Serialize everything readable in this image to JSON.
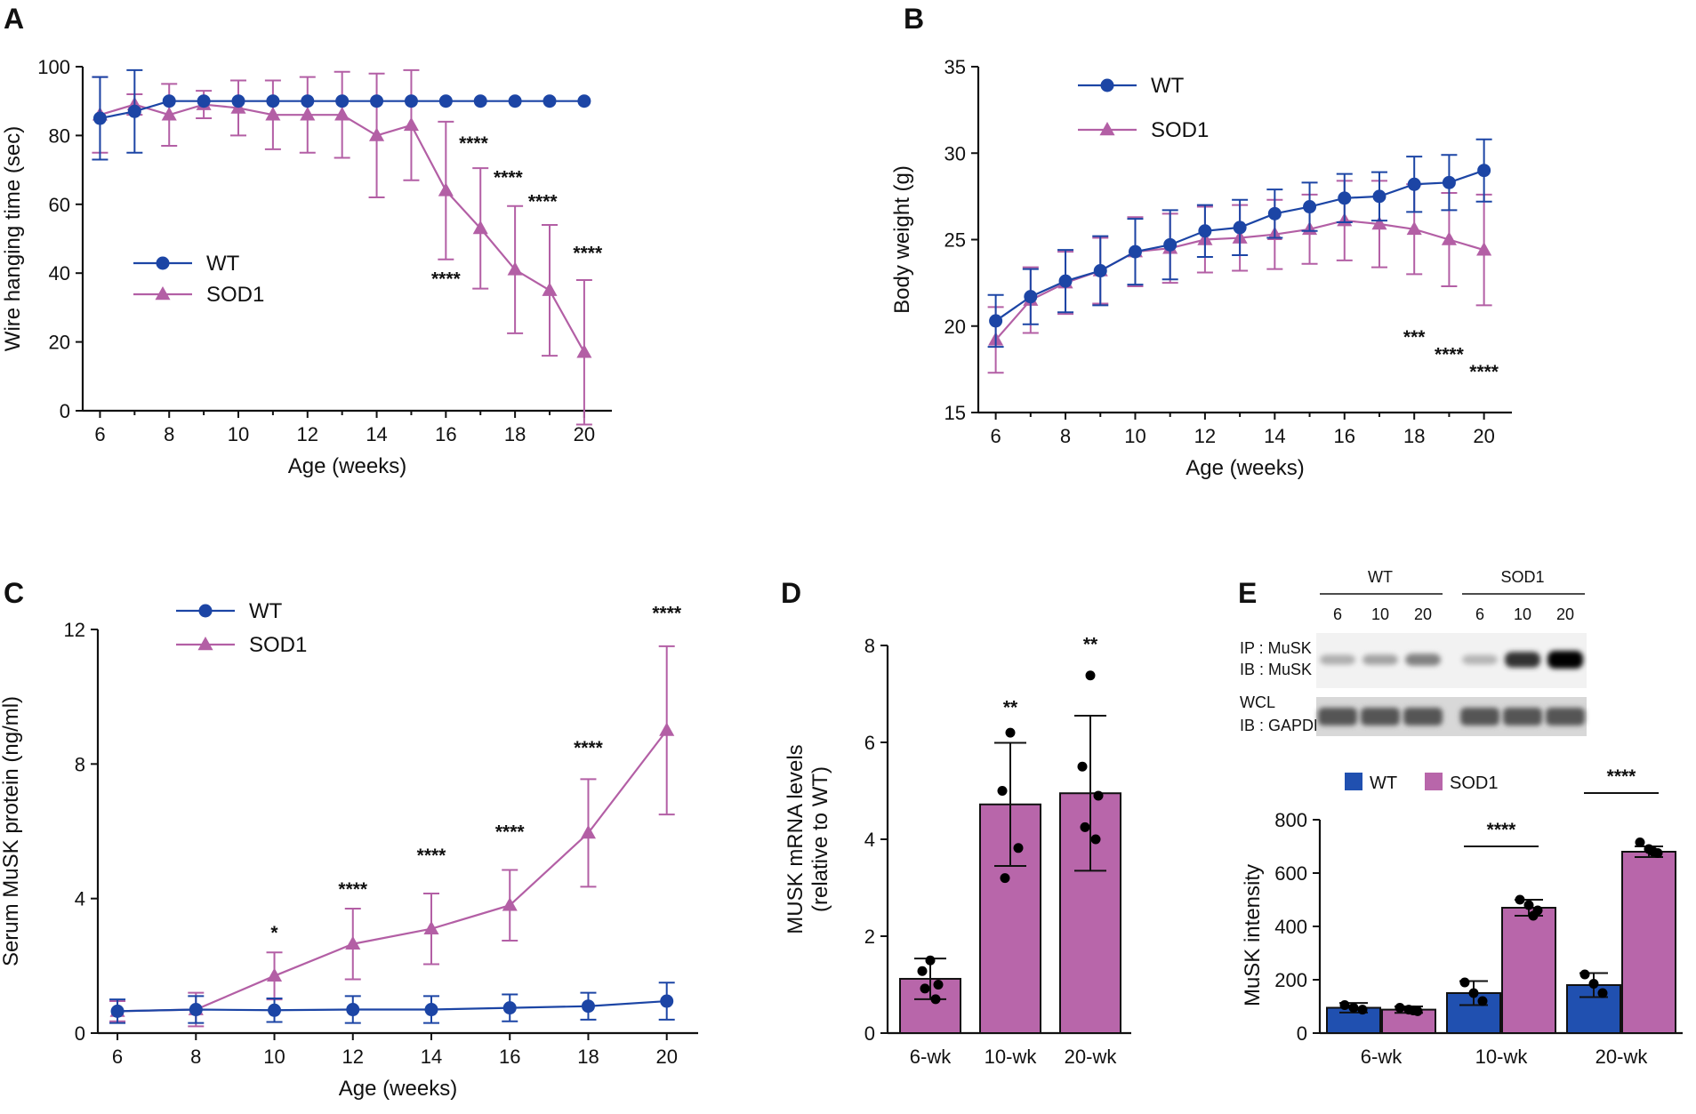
{
  "colors": {
    "wt": "#1c45a5",
    "sod1": "#b35fa5",
    "wt_fill": "#2050b0",
    "sod1_fill": "#b866aa",
    "axis": "#111111"
  },
  "chart_data": [
    {
      "panel": "A",
      "type": "line",
      "xlabel": "Age (weeks)",
      "ylabel": "Wire hanging time (sec)",
      "xlim": [
        5.5,
        20.8
      ],
      "ylim": [
        0,
        100
      ],
      "xticks": [
        6,
        8,
        10,
        12,
        14,
        16,
        18,
        20
      ],
      "yticks": [
        0,
        20,
        40,
        60,
        80,
        100
      ],
      "legend": {
        "position": "center-left",
        "labels": [
          "WT",
          "SOD1"
        ]
      },
      "x": [
        6,
        7,
        8,
        9,
        10,
        11,
        12,
        13,
        14,
        15,
        16,
        17,
        18,
        19,
        20
      ],
      "series": [
        {
          "name": "WT",
          "marker": "circle",
          "values": [
            85,
            87,
            90,
            90,
            90,
            90,
            90,
            90,
            90,
            90,
            90,
            90,
            90,
            90,
            90
          ],
          "err": [
            12,
            12,
            0,
            0,
            0,
            0,
            0,
            0,
            0,
            0,
            0,
            0,
            0,
            0,
            0
          ]
        },
        {
          "name": "SOD1",
          "marker": "triangle",
          "values": [
            86,
            89,
            86,
            89,
            88,
            86,
            86,
            86,
            80,
            83,
            64,
            53,
            41,
            35,
            17
          ],
          "err": [
            11,
            3,
            9,
            4,
            8,
            10,
            11,
            12.5,
            18,
            16,
            20,
            17.5,
            18.5,
            19,
            21
          ]
        }
      ],
      "annotations": [
        {
          "text": "****",
          "x": 16.8,
          "y": 76
        },
        {
          "text": "****",
          "x": 16.0,
          "y": 36.5
        },
        {
          "text": "****",
          "x": 17.8,
          "y": 66
        },
        {
          "text": "****",
          "x": 18.8,
          "y": 59
        },
        {
          "text": "****",
          "x": 20.1,
          "y": 44
        }
      ]
    },
    {
      "panel": "B",
      "type": "line",
      "xlabel": "Age (weeks)",
      "ylabel": "Body weight (g)",
      "xlim": [
        5.5,
        20.8
      ],
      "ylim": [
        15,
        35
      ],
      "xticks": [
        6,
        8,
        10,
        12,
        14,
        16,
        18,
        20
      ],
      "yticks": [
        15,
        20,
        25,
        30,
        35
      ],
      "legend": {
        "position": "top-left",
        "labels": [
          "WT",
          "SOD1"
        ]
      },
      "x": [
        6,
        7,
        8,
        9,
        10,
        11,
        12,
        13,
        14,
        15,
        16,
        17,
        18,
        19,
        20
      ],
      "series": [
        {
          "name": "WT",
          "marker": "circle",
          "values": [
            20.3,
            21.7,
            22.6,
            23.2,
            24.3,
            24.7,
            25.5,
            25.7,
            26.5,
            26.9,
            27.4,
            27.5,
            28.2,
            28.3,
            29.0
          ],
          "err": [
            1.5,
            1.6,
            1.8,
            2.0,
            1.9,
            2.0,
            1.5,
            1.6,
            1.4,
            1.4,
            1.4,
            1.4,
            1.6,
            1.6,
            1.8
          ]
        },
        {
          "name": "SOD1",
          "marker": "triangle",
          "values": [
            19.2,
            21.5,
            22.5,
            23.2,
            24.3,
            24.5,
            25.0,
            25.1,
            25.3,
            25.6,
            26.1,
            25.9,
            25.6,
            25.0,
            24.4
          ],
          "err": [
            1.9,
            1.9,
            1.8,
            1.9,
            2.0,
            2.0,
            1.9,
            1.9,
            2.0,
            2.0,
            2.3,
            2.5,
            2.6,
            2.7,
            3.2
          ]
        }
      ],
      "annotations": [
        {
          "text": "***",
          "x": 18.0,
          "y": 19.0
        },
        {
          "text": "****",
          "x": 19.0,
          "y": 18.0
        },
        {
          "text": "****",
          "x": 20.0,
          "y": 17.0
        }
      ]
    },
    {
      "panel": "C",
      "type": "line",
      "xlabel": "Age (weeks)",
      "ylabel": "Serum MuSK protein (ng/ml)",
      "xlim": [
        5.5,
        20.8
      ],
      "ylim": [
        0,
        12
      ],
      "xticks": [
        6,
        8,
        10,
        12,
        14,
        16,
        18,
        20
      ],
      "yticks": [
        0,
        4,
        8,
        12
      ],
      "legend": {
        "position": "top-left",
        "labels": [
          "WT",
          "SOD1"
        ]
      },
      "x": [
        6,
        8,
        10,
        12,
        14,
        16,
        18,
        20
      ],
      "series": [
        {
          "name": "WT",
          "marker": "circle",
          "values": [
            0.65,
            0.7,
            0.68,
            0.7,
            0.7,
            0.75,
            0.8,
            0.95
          ],
          "err": [
            0.35,
            0.4,
            0.35,
            0.4,
            0.4,
            0.4,
            0.4,
            0.55
          ]
        },
        {
          "name": "SOD1",
          "marker": "triangle",
          "values": [
            0.65,
            0.7,
            1.7,
            2.65,
            3.1,
            3.8,
            5.95,
            9.0
          ],
          "err": [
            0.3,
            0.5,
            0.7,
            1.05,
            1.05,
            1.05,
            1.6,
            2.5
          ]
        }
      ],
      "annotations": [
        {
          "text": "*",
          "x": 10,
          "y": 2.8
        },
        {
          "text": "****",
          "x": 12,
          "y": 4.1
        },
        {
          "text": "****",
          "x": 14,
          "y": 5.1
        },
        {
          "text": "****",
          "x": 16,
          "y": 5.8
        },
        {
          "text": "****",
          "x": 18,
          "y": 8.3
        },
        {
          "text": "****",
          "x": 20,
          "y": 12.3
        }
      ]
    },
    {
      "panel": "D",
      "type": "bar",
      "xlabel": "",
      "ylabel": "MUSK mRNA levels",
      "ylabel2": "(relative to WT)",
      "ylim": [
        0,
        8
      ],
      "yticks": [
        0,
        2,
        4,
        6,
        8
      ],
      "categories": [
        "6-wk",
        "10-wk",
        "20-wk"
      ],
      "values": [
        1.12,
        4.72,
        4.95
      ],
      "err": [
        0.42,
        1.27,
        1.6
      ],
      "points": [
        [
          1.5,
          1.28,
          1.0,
          0.92,
          0.7
        ],
        [
          6.2,
          5.0,
          3.82,
          3.2
        ],
        [
          7.38,
          5.5,
          4.9,
          4.25,
          4.0
        ]
      ],
      "annotations": [
        {
          "text": "**",
          "category": "10-wk",
          "y": 6.6
        },
        {
          "text": "**",
          "category": "20-wk",
          "y": 7.9
        }
      ]
    },
    {
      "panel": "E",
      "type": "bar",
      "xlabel": "",
      "ylabel": "MuSK intensity",
      "ylim": [
        0,
        800
      ],
      "yticks": [
        0,
        200,
        400,
        600,
        800
      ],
      "categories": [
        "6-wk",
        "10-wk",
        "20-wk"
      ],
      "legend": {
        "position": "top",
        "labels": [
          "WT",
          "SOD1"
        ]
      },
      "series": [
        {
          "name": "WT",
          "values": [
            95,
            150,
            180
          ],
          "err": [
            18,
            45,
            45
          ],
          "points": [
            [
              105,
              95,
              88
            ],
            [
              190,
              150,
              120
            ],
            [
              220,
              185,
              150
            ]
          ]
        },
        {
          "name": "SOD1",
          "values": [
            88,
            470,
            680
          ],
          "err": [
            12,
            30,
            20
          ],
          "points": [
            [
              95,
              88,
              82,
              85
            ],
            [
              500,
              480,
              460,
              440
            ],
            [
              715,
              690,
              675,
              680
            ]
          ]
        }
      ],
      "annotations": [
        {
          "text": "****",
          "category": "10-wk",
          "y": 720
        },
        {
          "text": "****",
          "category": "20-wk",
          "y": 920
        }
      ],
      "blot": {
        "group_labels": [
          "WT",
          "SOD1"
        ],
        "lane_labels": [
          "6",
          "10",
          "20",
          "6",
          "10",
          "20"
        ],
        "row1_labels": [
          "IP : MuSK",
          "IB : MuSK"
        ],
        "row2_labels": [
          "WCL",
          "IB : GAPDH"
        ],
        "musk_band_intensity": [
          0.25,
          0.3,
          0.45,
          0.22,
          0.8,
          1.0
        ]
      }
    }
  ]
}
